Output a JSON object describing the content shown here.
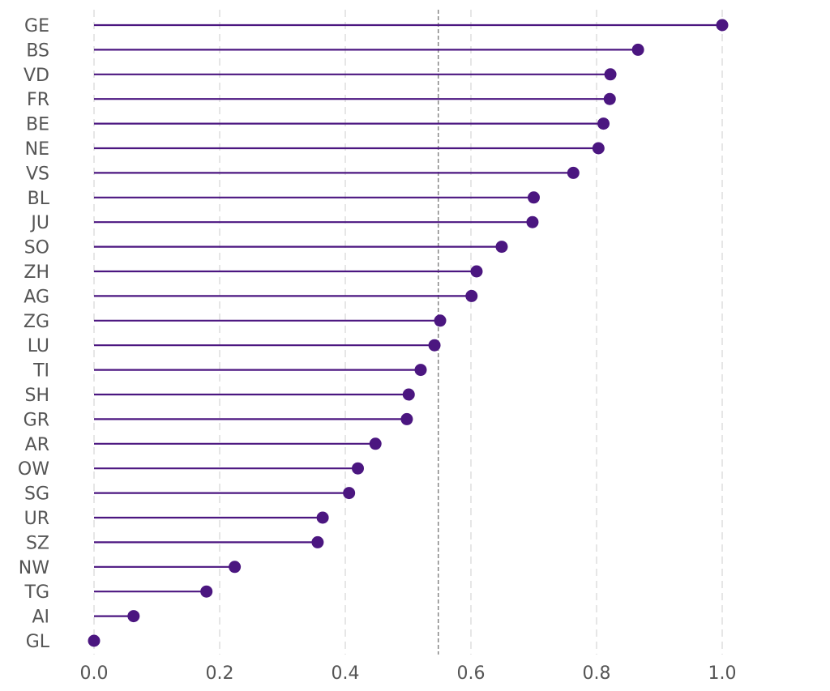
{
  "chart_data": {
    "type": "lollipop",
    "orientation": "horizontal",
    "categories": [
      "GE",
      "BS",
      "VD",
      "FR",
      "BE",
      "NE",
      "VS",
      "BL",
      "JU",
      "SO",
      "ZH",
      "AG",
      "ZG",
      "LU",
      "TI",
      "SH",
      "GR",
      "AR",
      "OW",
      "SG",
      "UR",
      "SZ",
      "NW",
      "TG",
      "AI",
      "GL"
    ],
    "values": [
      1.0,
      0.866,
      0.822,
      0.821,
      0.811,
      0.803,
      0.763,
      0.7,
      0.698,
      0.649,
      0.609,
      0.601,
      0.551,
      0.542,
      0.52,
      0.501,
      0.498,
      0.448,
      0.42,
      0.406,
      0.364,
      0.356,
      0.224,
      0.179,
      0.063,
      0.0
    ],
    "reference_line": 0.548,
    "xlim": [
      0.0,
      1.0
    ],
    "x_ticks": [
      "0.0",
      "0.2",
      "0.4",
      "0.6",
      "0.8",
      "1.0"
    ],
    "title": "",
    "xlabel": "",
    "ylabel": "",
    "grid": "vertical dashed",
    "colors": {
      "lollipop": "#4b1680",
      "grid": "#d6d6d6",
      "reference": "#808080",
      "text": "#555555"
    }
  }
}
